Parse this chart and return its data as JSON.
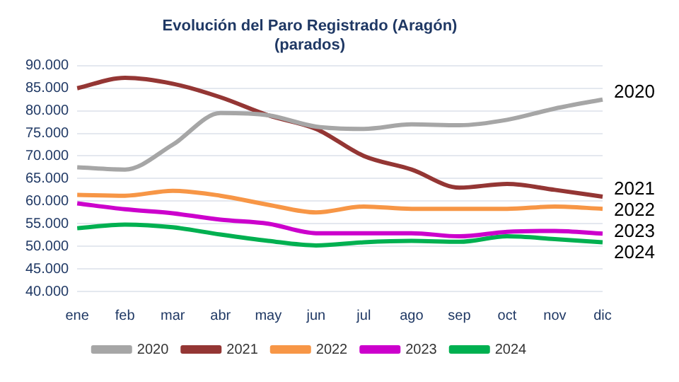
{
  "chart_data": {
    "type": "line",
    "title": "Evolución del Paro Registrado (Aragón)",
    "subtitle": "(parados)",
    "categories": [
      "ene",
      "feb",
      "mar",
      "abr",
      "may",
      "jun",
      "jul",
      "ago",
      "sep",
      "oct",
      "nov",
      "dic"
    ],
    "series": [
      {
        "name": "2020",
        "color": "#a6a6a6",
        "values": [
          67500,
          67000,
          72500,
          79500,
          79000,
          76500,
          76000,
          77000,
          76800,
          78000,
          80500,
          82500
        ]
      },
      {
        "name": "2021",
        "color": "#943634",
        "values": [
          85000,
          87300,
          86000,
          83000,
          79000,
          76000,
          70000,
          67000,
          63000,
          63800,
          62500,
          61000
        ]
      },
      {
        "name": "2022",
        "color": "#f79646",
        "values": [
          61400,
          61200,
          62300,
          61200,
          59200,
          57500,
          58800,
          58300,
          58300,
          58300,
          58800,
          58300
        ]
      },
      {
        "name": "2023",
        "color": "#cc00cc",
        "values": [
          59500,
          58200,
          57300,
          55900,
          55000,
          52900,
          52900,
          52900,
          52200,
          53200,
          53400,
          52800
        ]
      },
      {
        "name": "2024",
        "color": "#00b050",
        "values": [
          54000,
          54800,
          54200,
          52600,
          51200,
          50200,
          50900,
          51200,
          51000,
          52200,
          51600,
          50900
        ]
      }
    ],
    "ylim": [
      40000,
      90000
    ],
    "yticks": [
      {
        "value": 40000,
        "label": "40.000"
      },
      {
        "value": 45000,
        "label": "45.000"
      },
      {
        "value": 50000,
        "label": "50.000"
      },
      {
        "value": 55000,
        "label": "55.000"
      },
      {
        "value": 60000,
        "label": "60.000"
      },
      {
        "value": 65000,
        "label": "65.000"
      },
      {
        "value": 70000,
        "label": "70.000"
      },
      {
        "value": 75000,
        "label": "75.000"
      },
      {
        "value": 80000,
        "label": "80.000"
      },
      {
        "value": 85000,
        "label": "85.000"
      },
      {
        "value": 90000,
        "label": "90.000"
      }
    ],
    "grid": "y",
    "legend": "bottom",
    "marker": "none",
    "line_style": "solid"
  }
}
